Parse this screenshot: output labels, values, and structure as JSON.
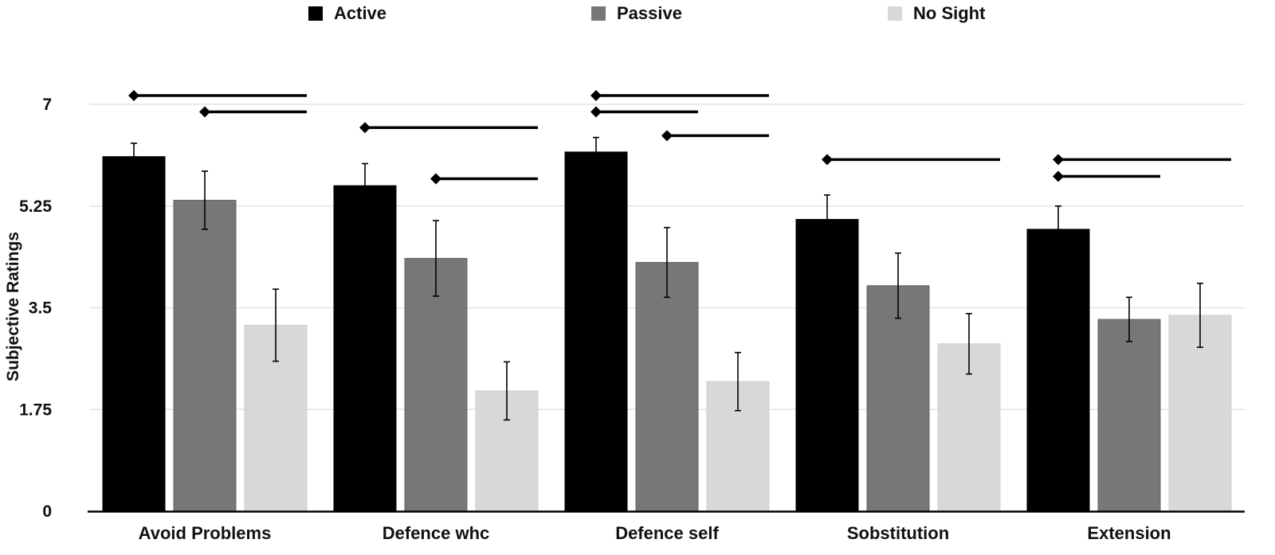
{
  "chart_data": {
    "type": "bar",
    "title": "",
    "xlabel": "",
    "ylabel": "Subjective Ratings",
    "ylim": [
      0,
      7
    ],
    "yticks": [
      "0",
      "1.75",
      "3.5",
      "5.25",
      "7"
    ],
    "grid": true,
    "legend_position": "top",
    "categories": [
      "Avoid Problems",
      "Defence whc",
      "Defence self",
      "Sobstitution",
      "Extension"
    ],
    "series": [
      {
        "name": "Active",
        "color": "#000000",
        "values": [
          6.1,
          5.6,
          6.18,
          5.02,
          4.85
        ],
        "errors": [
          0.23,
          0.38,
          0.25,
          0.42,
          0.4
        ]
      },
      {
        "name": "Passive",
        "color": "#777777",
        "values": [
          5.35,
          4.35,
          4.28,
          3.88,
          3.3
        ],
        "errors": [
          0.5,
          0.65,
          0.6,
          0.56,
          0.38
        ]
      },
      {
        "name": "No Sight",
        "color": "#d8d8d8",
        "values": [
          3.2,
          2.07,
          2.23,
          2.88,
          3.37
        ],
        "errors": [
          0.62,
          0.5,
          0.5,
          0.52,
          0.55
        ]
      }
    ],
    "significance": [
      {
        "category": 0,
        "from": "Active",
        "to": "No Sight",
        "y": 7.15
      },
      {
        "category": 0,
        "from": "Passive",
        "to": "No Sight",
        "y": 6.87
      },
      {
        "category": 1,
        "from": "Active",
        "to": "No Sight",
        "y": 6.6
      },
      {
        "category": 1,
        "from": "Passive",
        "to": "No Sight",
        "y": 5.72
      },
      {
        "category": 2,
        "from": "Active",
        "to": "No Sight",
        "y": 7.15
      },
      {
        "category": 2,
        "from": "Active",
        "to": "Passive",
        "y": 6.87
      },
      {
        "category": 2,
        "from": "Passive",
        "to": "No Sight",
        "y": 6.46
      },
      {
        "category": 3,
        "from": "Active",
        "to": "No Sight",
        "y": 6.05
      },
      {
        "category": 4,
        "from": "Active",
        "to": "No Sight",
        "y": 6.05
      },
      {
        "category": 4,
        "from": "Active",
        "to": "Passive",
        "y": 5.76
      }
    ]
  }
}
